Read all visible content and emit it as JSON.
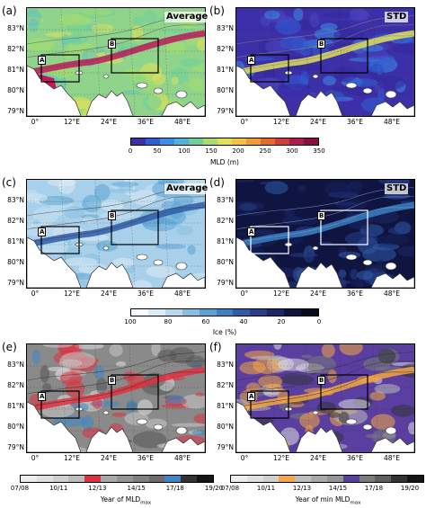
{
  "panels": [
    {
      "id": "a",
      "label": "(a)",
      "title": "Average",
      "theme": "mld_avg"
    },
    {
      "id": "b",
      "label": "(b)",
      "title": "STD",
      "theme": "mld_std"
    },
    {
      "id": "c",
      "label": "(c)",
      "title": "Average",
      "theme": "ice_avg"
    },
    {
      "id": "d",
      "label": "(d)",
      "title": "STD",
      "theme": "ice_std"
    },
    {
      "id": "e",
      "label": "(e)",
      "title": "",
      "theme": "year_max"
    },
    {
      "id": "f",
      "label": "(f)",
      "title": "",
      "theme": "year_min"
    }
  ],
  "lat_labels": [
    "83°N",
    "82°N",
    "81°N",
    "80°N",
    "79°N"
  ],
  "lon_labels": [
    "0°",
    "12°E",
    "24°E",
    "36°E",
    "48°E"
  ],
  "box_labels": {
    "a": "A",
    "b": "B"
  },
  "colorbars": {
    "mld": {
      "ticks": [
        "0",
        "50",
        "100",
        "150",
        "200",
        "250",
        "300",
        "350"
      ],
      "label": "MLD (m)",
      "colors": [
        "#3c2fa8",
        "#2f5fd6",
        "#3c8ee6",
        "#4fb3d9",
        "#6fcf9b",
        "#a8dc6b",
        "#e3e058",
        "#f5c242",
        "#f29a34",
        "#e56a2b",
        "#d23d3a",
        "#b01d4a",
        "#8a0d3f"
      ]
    },
    "ice": {
      "ticks": [
        "100",
        "80",
        "60",
        "40",
        "20",
        "0"
      ],
      "label": "Ice (%)",
      "colors": [
        "#f7fbff",
        "#dcebf5",
        "#b8d8ec",
        "#87bfe0",
        "#5aa2d4",
        "#3b80c1",
        "#2f5ba8",
        "#2a3c8a",
        "#1d2666",
        "#0f1440",
        "#070a1e"
      ]
    },
    "year_max": {
      "ticks": [
        "07/08",
        "10/11",
        "12/13",
        "14/15",
        "17/18",
        "19/20"
      ],
      "label_main": "Year of MLD",
      "label_sub": "max",
      "colors": [
        "#ededed",
        "#e0e0e0",
        "#d0d0d0",
        "#bdbdbd",
        "#e0303e",
        "#a9a9a9",
        "#959595",
        "#808080",
        "#6c6c6c",
        "#3a86c8",
        "#333333",
        "#151515"
      ]
    },
    "year_min": {
      "ticks": [
        "07/08",
        "10/11",
        "12/13",
        "14/15",
        "17/18",
        "19/20"
      ],
      "label_main": "Year of min MLD",
      "label_sub": "max",
      "colors": [
        "#ededed",
        "#e0e0e0",
        "#d0d0d0",
        "#f5a742",
        "#bdbdbd",
        "#a9a9a9",
        "#959595",
        "#5a3ea0",
        "#7a7a7a",
        "#5e5e5e",
        "#333333",
        "#151515"
      ]
    }
  }
}
